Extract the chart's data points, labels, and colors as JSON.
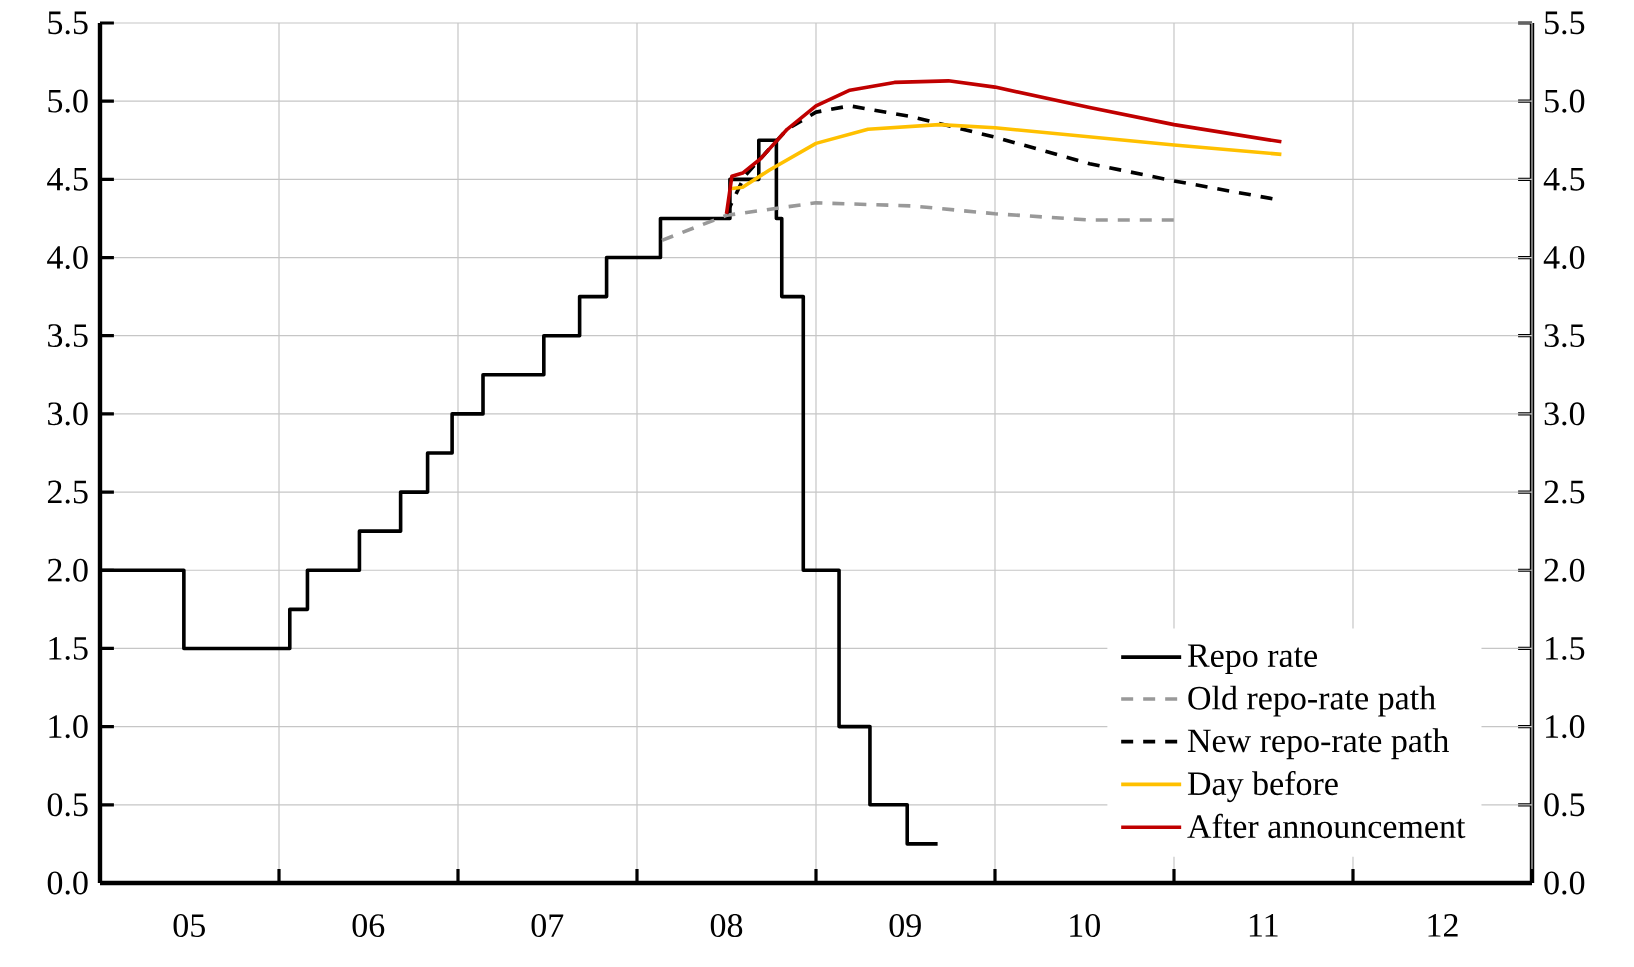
{
  "chart_data": {
    "type": "line",
    "xlim": [
      "2005-01-01",
      "2013-01-01"
    ],
    "xticks": [
      {
        "value": "2005-01-01",
        "label": null
      },
      {
        "value": "2006-01-01",
        "label": null
      },
      {
        "value": "2007-01-01",
        "label": null
      },
      {
        "value": "2008-01-01",
        "label": null
      },
      {
        "value": "2009-01-01",
        "label": null
      },
      {
        "value": "2010-01-01",
        "label": null
      },
      {
        "value": "2011-01-01",
        "label": null
      },
      {
        "value": "2012-01-01",
        "label": null
      },
      {
        "value": "2013-01-01",
        "label": null
      },
      {
        "value": "2005-07-02",
        "label": "05"
      },
      {
        "value": "2006-07-02",
        "label": "06"
      },
      {
        "value": "2007-07-02",
        "label": "07"
      },
      {
        "value": "2008-07-02",
        "label": "08"
      },
      {
        "value": "2009-07-02",
        "label": "09"
      },
      {
        "value": "2010-07-02",
        "label": "10"
      },
      {
        "value": "2011-07-02",
        "label": "11"
      },
      {
        "value": "2012-07-02",
        "label": "12"
      }
    ],
    "ylim": [
      0,
      5.5
    ],
    "yticks": [
      {
        "value": 0,
        "label": "0.0"
      },
      {
        "value": 0.5,
        "label": "0.5"
      },
      {
        "value": 1,
        "label": "1.0"
      },
      {
        "value": 1.5,
        "label": "1.5"
      },
      {
        "value": 2,
        "label": "2.0"
      },
      {
        "value": 2.5,
        "label": "2.5"
      },
      {
        "value": 3,
        "label": "3.0"
      },
      {
        "value": 3.5,
        "label": "3.5"
      },
      {
        "value": 4,
        "label": "4.0"
      },
      {
        "value": 4.5,
        "label": "4.5"
      },
      {
        "value": 5,
        "label": "5.0"
      },
      {
        "value": 5.5,
        "label": "5.5"
      }
    ],
    "y2lim": [
      0,
      5.5
    ],
    "y2ticks": [
      {
        "value": 0,
        "label": "0.0"
      },
      {
        "value": 0.5,
        "label": "0.5"
      },
      {
        "value": 1,
        "label": "1.0"
      },
      {
        "value": 1.5,
        "label": "1.5"
      },
      {
        "value": 2,
        "label": "2.0"
      },
      {
        "value": 2.5,
        "label": "2.5"
      },
      {
        "value": 3,
        "label": "3.0"
      },
      {
        "value": 3.5,
        "label": "3.5"
      },
      {
        "value": 4,
        "label": "4.0"
      },
      {
        "value": 4.5,
        "label": "4.5"
      },
      {
        "value": 5,
        "label": "5.0"
      },
      {
        "value": 5.5,
        "label": "5.5"
      }
    ],
    "grid": true,
    "legend": "bottom right",
    "series": [
      {
        "name": "Repo rate",
        "type": "step",
        "color": "#000000",
        "line_style": "solid",
        "x": [
          "2005-01-01",
          "2005-06-21",
          "2006-01-23",
          "2006-02-28",
          "2006-06-14",
          "2006-09-06",
          "2006-10-31",
          "2006-12-20",
          "2007-02-21",
          "2007-06-25",
          "2007-09-06",
          "2007-10-31",
          "2008-02-18",
          "2008-07-09",
          "2008-09-06",
          "2008-10-12",
          "2008-10-23",
          "2008-12-06",
          "2009-02-17",
          "2009-04-21",
          "2009-07-06",
          "2009-09-06"
        ],
        "values": [
          2.0,
          1.5,
          1.75,
          2.0,
          2.25,
          2.5,
          2.75,
          3.0,
          3.25,
          3.5,
          3.75,
          4.0,
          4.25,
          4.5,
          4.75,
          4.25,
          3.75,
          2.0,
          1.0,
          0.5,
          0.25,
          0.25
        ]
      },
      {
        "name": "Old repo-rate path",
        "color": "#999999",
        "line_style": "dashed",
        "x": [
          "2008-02-21",
          "2008-07-02",
          "2009-01-01",
          "2009-07-16",
          "2010-01-01",
          "2010-07-13",
          "2011-01-12"
        ],
        "values": [
          4.11,
          4.27,
          4.35,
          4.33,
          4.28,
          4.24,
          4.24
        ]
      },
      {
        "name": "New repo-rate path",
        "color": "#000000",
        "line_style": "dashed",
        "x": [
          "2008-07-02",
          "2008-08-08",
          "2008-11-03",
          "2009-01-01",
          "2009-03-11",
          "2009-07-16",
          "2010-01-01",
          "2010-07-13",
          "2011-01-01",
          "2011-07-31"
        ],
        "values": [
          4.28,
          4.52,
          4.82,
          4.93,
          4.97,
          4.9,
          4.77,
          4.6,
          4.49,
          4.37
        ]
      },
      {
        "name": "Day before",
        "color": "#ffc000",
        "line_style": "solid",
        "x": [
          "2008-07-09",
          "2008-08-04",
          "2008-09-28",
          "2009-01-01",
          "2009-04-17",
          "2009-09-09",
          "2010-01-01",
          "2011-01-01",
          "2011-08-08"
        ],
        "values": [
          4.44,
          4.45,
          4.56,
          4.73,
          4.82,
          4.85,
          4.83,
          4.72,
          4.66
        ]
      },
      {
        "name": "After announcement",
        "color": "#c00000",
        "line_style": "solid",
        "x": [
          "2008-07-02",
          "2008-07-13",
          "2008-08-04",
          "2008-09-09",
          "2008-11-03",
          "2009-01-01",
          "2009-03-11",
          "2009-06-10",
          "2009-09-28",
          "2010-01-01",
          "2010-07-13",
          "2011-01-01",
          "2011-08-08"
        ],
        "values": [
          4.28,
          4.52,
          4.54,
          4.63,
          4.82,
          4.97,
          5.07,
          5.12,
          5.13,
          5.09,
          4.96,
          4.85,
          4.74
        ]
      }
    ]
  }
}
